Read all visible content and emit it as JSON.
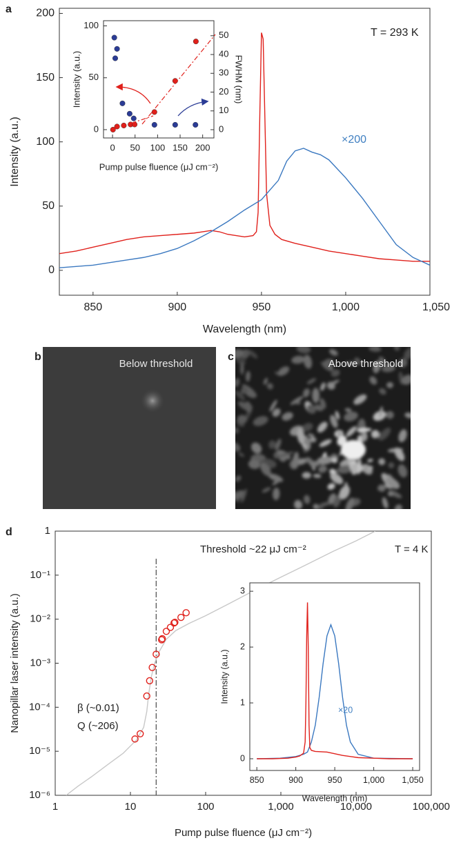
{
  "chart_data": [
    {
      "type": "line",
      "label": "a",
      "x_label": "Wavelength (nm)",
      "y_label": "Intensity (a.u.)",
      "xlim": [
        830,
        1050
      ],
      "xticks": [
        850,
        900,
        950,
        {
          "value": 1000,
          "label": "1,000"
        },
        {
          "value": 1050,
          "label": "1,050"
        }
      ],
      "ylim": [
        -19.4,
        204
      ],
      "yticks": [
        0,
        50,
        100,
        150,
        200
      ],
      "annotations": [
        "T = 293 K",
        "×200"
      ],
      "series": [
        {
          "color": "#e0201b",
          "x": [
            830,
            840,
            850,
            860,
            870,
            880,
            890,
            900,
            910,
            915,
            920,
            925,
            930,
            935,
            940,
            945,
            947,
            948,
            949,
            950,
            951,
            952,
            953,
            955,
            958,
            962,
            970,
            980,
            990,
            1000,
            1010,
            1020,
            1030,
            1040,
            1050
          ],
          "values": [
            13,
            15,
            18,
            21,
            24,
            26,
            27,
            28,
            29,
            30,
            31,
            30,
            28,
            27,
            26,
            27,
            30,
            45,
            120,
            185,
            180,
            120,
            60,
            35,
            28,
            24,
            21,
            18,
            15,
            13,
            11,
            9,
            8,
            7,
            7
          ]
        },
        {
          "color": "#3a78c0",
          "x": [
            830,
            840,
            850,
            860,
            870,
            880,
            890,
            900,
            910,
            920,
            930,
            940,
            950,
            960,
            965,
            970,
            975,
            980,
            985,
            990,
            1000,
            1010,
            1020,
            1030,
            1040,
            1050
          ],
          "values": [
            2,
            3,
            4,
            6,
            8,
            10,
            13,
            17,
            23,
            30,
            38,
            47,
            55,
            70,
            85,
            93,
            95,
            92,
            90,
            86,
            72,
            56,
            38,
            20,
            10,
            4
          ]
        }
      ]
    },
    {
      "type": "scatter",
      "marker": "sphere",
      "x_label": "Pump pulse fluence (μJ cm⁻²)",
      "y_label": "Intensity (a.u.)",
      "y2_label": "FWHM (nm)",
      "xlim": [
        -20,
        225
      ],
      "xticks": [
        0,
        50,
        100,
        150,
        200
      ],
      "ylim": [
        -8,
        105
      ],
      "yticks": [
        0,
        50,
        100
      ],
      "y2lim": [
        -4.4,
        58
      ],
      "y2ticks": [
        0,
        10,
        20,
        30,
        40,
        50
      ],
      "series": [
        {
          "color": "#e0201b",
          "x": [
            1,
            10,
            25,
            40,
            49,
            93,
            139,
            185
          ],
          "values": [
            0,
            3,
            4,
            5,
            5,
            17,
            47,
            85
          ]
        },
        {
          "color": "#2b3c96",
          "axis": "y2",
          "x": [
            4,
            10,
            6,
            22,
            38,
            47,
            93,
            139,
            184
          ],
          "values": [
            49,
            43,
            38,
            14,
            8.5,
            6,
            2.6,
            2.6,
            2.6
          ]
        }
      ]
    },
    {
      "type": "line",
      "label": "d",
      "xscale": "log",
      "yscale": "log",
      "x_label": "Pump pulse fluence (μJ cm⁻²)",
      "y_label": "Nanopillar laser intensity (a.u.)",
      "xlim": [
        1,
        100000
      ],
      "xticks": [
        1,
        10,
        100,
        {
          "value": 1000,
          "label": "1,000"
        },
        {
          "value": 10000,
          "label": "10,000"
        },
        {
          "value": 100000,
          "label": "100,000"
        }
      ],
      "ylim": [
        1e-06,
        1
      ],
      "yticks": [
        {
          "value": 1e-06,
          "label": "10⁻⁶"
        },
        {
          "value": 1e-05,
          "label": "10⁻⁵"
        },
        {
          "value": 0.0001,
          "label": "10⁻⁴"
        },
        {
          "value": 0.001,
          "label": "10⁻³"
        },
        {
          "value": 0.01,
          "label": "10⁻²"
        },
        {
          "value": 0.1,
          "label": "10⁻¹"
        },
        1
      ],
      "threshold_x": 22,
      "annotations": [
        "Threshold ~22 μJ cm⁻²",
        "β (~0.01)",
        "Q (~206)",
        "T = 4 K"
      ],
      "series": [
        {
          "color": "#c8c8c8",
          "x": [
            1.4,
            2,
            3,
            5,
            8,
            12,
            15,
            16.5,
            17.5,
            19,
            21,
            24,
            30,
            40,
            60,
            100,
            200,
            500,
            1000,
            2000,
            5000,
            10000,
            18000
          ],
          "values": [
            1e-06,
            1.6e-06,
            2.6e-06,
            5e-06,
            9e-06,
            1.8e-05,
            3.5e-05,
            8e-05,
            0.0002,
            0.0005,
            0.001,
            0.0018,
            0.0035,
            0.0055,
            0.008,
            0.012,
            0.022,
            0.05,
            0.09,
            0.16,
            0.35,
            0.6,
            1
          ]
        },
        {
          "color": "#e0201b",
          "type": "scatter",
          "marker": "circle-open",
          "x": [
            11.5,
            13.5,
            16.5,
            18,
            19.5,
            22,
            26,
            26.5,
            30,
            34,
            38,
            39,
            47,
            55
          ],
          "values": [
            1.9e-05,
            2.5e-05,
            0.00018,
            0.0004,
            0.0008,
            0.0016,
            0.0034,
            0.0036,
            0.0053,
            0.0065,
            0.0082,
            0.0085,
            0.011,
            0.014
          ]
        }
      ]
    },
    {
      "type": "line",
      "x_label": "Wavelength (nm)",
      "y_label": "Intensity (a.u.)",
      "xlim": [
        841,
        1058.8
      ],
      "xticks": [
        850,
        900,
        950,
        {
          "value": 1000,
          "label": "1,000"
        },
        {
          "value": 1050,
          "label": "1,050"
        }
      ],
      "ylim": [
        -0.21,
        3.15
      ],
      "yticks": [
        0,
        1,
        2,
        3
      ],
      "annotations": [
        "×20"
      ],
      "series": [
        {
          "color": "#3a78c0",
          "x": [
            850,
            880,
            900,
            910,
            915,
            920,
            925,
            930,
            935,
            940,
            945,
            950,
            955,
            960,
            965,
            970,
            980,
            1000,
            1050
          ],
          "values": [
            0,
            0.01,
            0.04,
            0.08,
            0.12,
            0.3,
            0.6,
            1.1,
            1.7,
            2.2,
            2.4,
            2.2,
            1.7,
            1.1,
            0.6,
            0.3,
            0.08,
            0.01,
            0
          ]
        },
        {
          "color": "#e0201b",
          "x": [
            850,
            870,
            890,
            900,
            905,
            910,
            912,
            913,
            914,
            915,
            916,
            917,
            918,
            920,
            925,
            940,
            960,
            980,
            1000,
            1020,
            1050
          ],
          "values": [
            0,
            0,
            0.01,
            0.03,
            0.05,
            0.1,
            0.3,
            1,
            2.2,
            2.8,
            2,
            0.6,
            0.2,
            0.15,
            0.13,
            0.12,
            0.06,
            0.02,
            0.01,
            0,
            0
          ]
        }
      ]
    }
  ],
  "images": [
    {
      "label": "b",
      "caption": "Below threshold"
    },
    {
      "label": "c",
      "caption": "Above threshold"
    }
  ]
}
